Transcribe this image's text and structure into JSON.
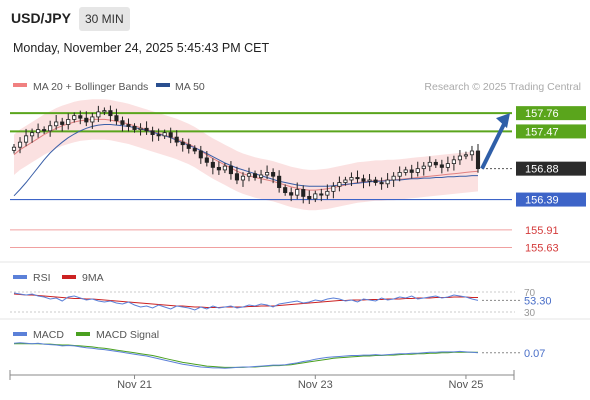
{
  "header": {
    "symbol": "USD/JPY",
    "timeframe": "30 MIN",
    "datetime": "Monday, November 24, 2025 5:45:43 PM CET"
  },
  "colors": {
    "resistance": "#5aa51c",
    "support": "#3d64c8",
    "minor_level": "#d43b3b",
    "current_price_box": "#2b2b2b",
    "arrow": "#2f5fa8",
    "bollinger_fill": "#fadada",
    "ma20": "#e08080",
    "ma50": "#3a5fa8",
    "rsi": "#5b80d8",
    "rsi_ma": "#cc2222",
    "macd": "#5b80d8",
    "macd_signal": "#4aa020"
  },
  "chart_data": [
    {
      "type": "candlestick",
      "title": "USD/JPY",
      "legend": [
        {
          "name": "MA 20 + Bollinger Bands",
          "color": "#f08080"
        },
        {
          "name": "MA 50",
          "color": "#2a4f8f"
        }
      ],
      "credit": "Research © 2025 Trading Central",
      "x_ticks": [
        "Nov 21",
        "Nov 23",
        "Nov 25"
      ],
      "levels": [
        {
          "value": 157.76,
          "label": "157.76",
          "kind": "resistance"
        },
        {
          "value": 157.47,
          "label": "157.47",
          "kind": "resistance"
        },
        {
          "value": 156.88,
          "label": "156.88",
          "kind": "current"
        },
        {
          "value": 156.39,
          "label": "156.39",
          "kind": "support"
        },
        {
          "value": 155.91,
          "label": "155.91",
          "kind": "minor"
        },
        {
          "value": 155.63,
          "label": "155.63",
          "kind": "minor"
        }
      ],
      "ylim": [
        155.4,
        158.0
      ],
      "close": [
        157.22,
        157.3,
        157.4,
        157.45,
        157.5,
        157.48,
        157.56,
        157.62,
        157.58,
        157.66,
        157.72,
        157.68,
        157.62,
        157.7,
        157.78,
        157.8,
        157.72,
        157.64,
        157.58,
        157.55,
        157.5,
        157.52,
        157.48,
        157.42,
        157.4,
        157.45,
        157.38,
        157.3,
        157.26,
        157.2,
        157.16,
        157.05,
        156.98,
        156.9,
        156.86,
        156.92,
        156.8,
        156.7,
        156.76,
        156.8,
        156.74,
        156.78,
        156.82,
        156.76,
        156.58,
        156.5,
        156.46,
        156.55,
        156.44,
        156.4,
        156.48,
        156.46,
        156.52,
        156.6,
        156.66,
        156.7,
        156.74,
        156.72,
        156.68,
        156.7,
        156.66,
        156.64,
        156.7,
        156.76,
        156.82,
        156.86,
        156.82,
        156.88,
        156.92,
        156.98,
        156.94,
        156.9,
        156.96,
        157.02,
        157.08,
        157.1,
        157.16,
        156.88
      ],
      "ma20": [
        157.1,
        157.18,
        157.24,
        157.3,
        157.36,
        157.42,
        157.47,
        157.52,
        157.56,
        157.59,
        157.62,
        157.64,
        157.65,
        157.66,
        157.66,
        157.66,
        157.65,
        157.63,
        157.61,
        157.59,
        157.56,
        157.53,
        157.5,
        157.47,
        157.44,
        157.41,
        157.38,
        157.35,
        157.31,
        157.27,
        157.22,
        157.16,
        157.1,
        157.04,
        156.99,
        156.94,
        156.89,
        156.84,
        156.8,
        156.77,
        156.74,
        156.72,
        156.7,
        156.68,
        156.65,
        156.62,
        156.59,
        156.57,
        156.55,
        156.54,
        156.54,
        156.55,
        156.56,
        156.58,
        156.6,
        156.62,
        156.64,
        156.66,
        156.67,
        156.68,
        156.69,
        156.69,
        156.7,
        156.7,
        156.71,
        156.72,
        156.73,
        156.74,
        156.75,
        156.76,
        156.77,
        156.78,
        156.79,
        156.8,
        156.81,
        156.82,
        156.83,
        156.84
      ],
      "ma50": [
        156.45,
        156.55,
        156.66,
        156.78,
        156.9,
        157.02,
        157.13,
        157.22,
        157.3,
        157.37,
        157.43,
        157.48,
        157.52,
        157.55,
        157.57,
        157.58,
        157.58,
        157.57,
        157.56,
        157.55,
        157.53,
        157.51,
        157.49,
        157.46,
        157.43,
        157.4,
        157.37,
        157.33,
        157.29,
        157.25,
        157.21,
        157.17,
        157.12,
        157.07,
        157.02,
        156.97,
        156.93,
        156.89,
        156.86,
        156.83,
        156.8,
        156.77,
        156.74,
        156.71,
        156.68,
        156.66,
        156.64,
        156.62,
        156.61,
        156.6,
        156.6,
        156.6,
        156.6,
        156.61,
        156.62,
        156.63,
        156.64,
        156.65,
        156.66,
        156.67,
        156.68,
        156.68,
        156.69,
        156.7,
        156.7,
        156.71,
        156.72,
        156.72,
        156.73,
        156.73,
        156.74,
        156.74,
        156.75,
        156.75,
        156.76,
        156.76,
        156.77,
        156.77
      ],
      "bb_width": 0.32
    },
    {
      "type": "line",
      "title": "RSI",
      "legend": [
        {
          "name": "RSI",
          "color": "#5b80d8"
        },
        {
          "name": "9MA",
          "color": "#cc2222"
        }
      ],
      "ticks": [
        "70",
        "30"
      ],
      "last_value": "53.30",
      "ylim": [
        30,
        70
      ],
      "rsi": [
        68,
        66,
        64,
        66,
        62,
        60,
        56,
        58,
        52,
        60,
        62,
        58,
        54,
        56,
        52,
        50,
        52,
        48,
        46,
        50,
        44,
        40,
        42,
        38,
        44,
        40,
        36,
        42,
        40,
        38,
        34,
        40,
        36,
        42,
        38,
        40,
        42,
        38,
        40,
        44,
        42,
        46,
        44,
        40,
        46,
        48,
        50,
        52,
        48,
        50,
        54,
        52,
        56,
        58,
        56,
        52,
        54,
        50,
        56,
        54,
        52,
        58,
        54,
        56,
        60,
        58,
        62,
        56,
        58,
        60,
        62,
        58,
        60,
        64,
        62,
        60,
        56,
        53.3
      ],
      "rsi_ma": [
        66,
        65,
        64,
        64,
        63,
        62,
        61,
        60,
        59,
        58,
        57,
        57,
        56,
        56,
        55,
        54,
        53,
        52,
        51,
        50,
        49,
        48,
        47,
        46,
        45,
        44,
        43,
        42,
        42,
        41,
        40,
        40,
        39,
        39,
        39,
        40,
        40,
        40,
        40,
        41,
        41,
        42,
        42,
        42,
        43,
        44,
        45,
        46,
        47,
        48,
        49,
        50,
        51,
        52,
        53,
        53,
        54,
        54,
        54,
        55,
        55,
        55,
        56,
        56,
        56,
        57,
        57,
        58,
        58,
        58,
        59,
        59,
        59,
        60,
        60,
        60,
        59,
        59
      ]
    },
    {
      "type": "line",
      "title": "MACD",
      "legend": [
        {
          "name": "MACD",
          "color": "#5b80d8"
        },
        {
          "name": "MACD Signal",
          "color": "#4aa020"
        }
      ],
      "last_value": "0.07",
      "ylim": [
        -0.35,
        0.35
      ],
      "macd": [
        0.28,
        0.29,
        0.28,
        0.27,
        0.28,
        0.26,
        0.25,
        0.24,
        0.22,
        0.23,
        0.22,
        0.2,
        0.18,
        0.17,
        0.15,
        0.14,
        0.12,
        0.1,
        0.08,
        0.06,
        0.04,
        0.02,
        0.0,
        -0.03,
        -0.06,
        -0.09,
        -0.12,
        -0.15,
        -0.18,
        -0.2,
        -0.22,
        -0.24,
        -0.25,
        -0.26,
        -0.26,
        -0.27,
        -0.26,
        -0.25,
        -0.24,
        -0.24,
        -0.23,
        -0.22,
        -0.21,
        -0.2,
        -0.2,
        -0.19,
        -0.17,
        -0.15,
        -0.12,
        -0.1,
        -0.07,
        -0.05,
        -0.03,
        -0.02,
        -0.01,
        0.0,
        0.01,
        0.01,
        0.02,
        0.02,
        0.03,
        0.02,
        0.03,
        0.04,
        0.05,
        0.05,
        0.06,
        0.06,
        0.07,
        0.08,
        0.08,
        0.09,
        0.09,
        0.09,
        0.1,
        0.09,
        0.08,
        0.07
      ],
      "macd_signal": [
        0.27,
        0.27,
        0.27,
        0.27,
        0.27,
        0.26,
        0.26,
        0.25,
        0.24,
        0.24,
        0.23,
        0.22,
        0.21,
        0.2,
        0.18,
        0.17,
        0.15,
        0.13,
        0.11,
        0.09,
        0.07,
        0.05,
        0.03,
        0.01,
        -0.02,
        -0.05,
        -0.08,
        -0.11,
        -0.14,
        -0.16,
        -0.18,
        -0.2,
        -0.22,
        -0.23,
        -0.24,
        -0.25,
        -0.25,
        -0.25,
        -0.25,
        -0.24,
        -0.24,
        -0.23,
        -0.22,
        -0.21,
        -0.21,
        -0.2,
        -0.19,
        -0.17,
        -0.15,
        -0.13,
        -0.11,
        -0.09,
        -0.07,
        -0.05,
        -0.04,
        -0.03,
        -0.02,
        -0.01,
        0.0,
        0.0,
        0.01,
        0.01,
        0.02,
        0.02,
        0.03,
        0.04,
        0.04,
        0.05,
        0.05,
        0.06,
        0.06,
        0.07,
        0.07,
        0.08,
        0.08,
        0.08,
        0.08,
        0.08
      ]
    }
  ]
}
